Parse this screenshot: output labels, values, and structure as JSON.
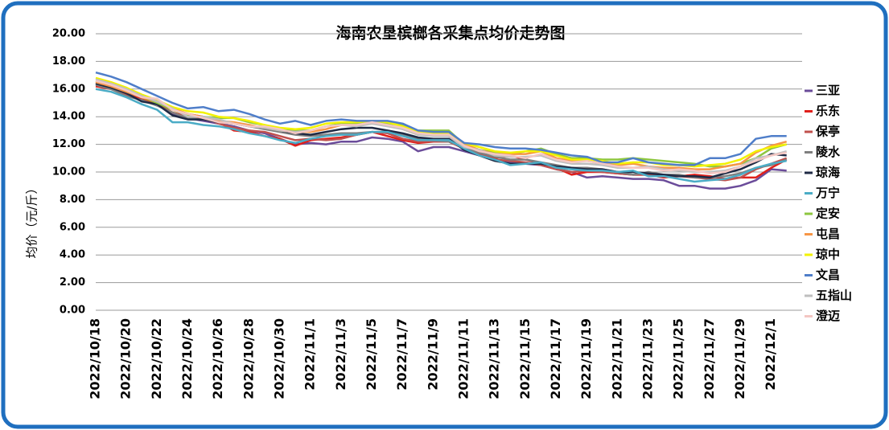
{
  "chart_data": {
    "type": "line",
    "title": "海南农垦槟榔各采集点均价走势图",
    "y_label": "均价（元/斤）",
    "categories": [
      "2022/10/18",
      null,
      "2022/10/20",
      null,
      "2022/10/22",
      null,
      "2022/10/24",
      null,
      "2022/10/26",
      null,
      "2022/10/28",
      null,
      "2022/10/30",
      null,
      "2022/11/1",
      null,
      "2022/11/3",
      null,
      "2022/11/5",
      null,
      "2022/11/7",
      null,
      "2022/11/9",
      null,
      "2022/11/11",
      null,
      "2022/11/13",
      null,
      "2022/11/15",
      null,
      "2022/11/17",
      null,
      "2022/11/19",
      null,
      "2022/11/21",
      null,
      "2022/11/23",
      null,
      "2022/11/25",
      null,
      "2022/11/27",
      null,
      "2022/11/29",
      null,
      "2022/12/1",
      null
    ],
    "ylim": [
      0,
      20
    ],
    "yticks": [
      {
        "value": 0,
        "label": "0.00"
      },
      {
        "value": 2,
        "label": "2.00"
      },
      {
        "value": 4,
        "label": "4.00"
      },
      {
        "value": 6,
        "label": "6.00"
      },
      {
        "value": 8,
        "label": "8.00"
      },
      {
        "value": 10,
        "label": "10.00"
      },
      {
        "value": 12,
        "label": "12.00"
      },
      {
        "value": 14,
        "label": "14.00"
      },
      {
        "value": 16,
        "label": "16.00"
      },
      {
        "value": 18,
        "label": "18.00"
      },
      {
        "value": 20,
        "label": "20.00"
      }
    ],
    "grid": true,
    "legend": "right",
    "series": [
      {
        "name": "三亚",
        "color": "#6b4c9a",
        "values": [
          16.4,
          16.1,
          15.7,
          15.2,
          14.9,
          14.2,
          13.9,
          13.7,
          13.5,
          13.3,
          13.0,
          12.8,
          12.4,
          12.0,
          12.1,
          12.0,
          12.2,
          12.2,
          12.5,
          12.4,
          12.2,
          11.5,
          11.8,
          11.8,
          11.5,
          11.2,
          10.9,
          10.7,
          10.6,
          10.5,
          10.2,
          10.0,
          9.6,
          9.7,
          9.6,
          9.5,
          9.5,
          9.4,
          9.0,
          9.0,
          8.8,
          8.8,
          9.0,
          9.4,
          10.2,
          10.1
        ]
      },
      {
        "name": "乐东",
        "color": "#e0201b",
        "values": [
          16.2,
          16.0,
          15.6,
          15.3,
          14.9,
          14.3,
          14.0,
          13.8,
          13.6,
          13.0,
          12.9,
          12.6,
          12.4,
          11.9,
          12.3,
          12.4,
          12.5,
          12.7,
          12.9,
          12.6,
          12.3,
          12.1,
          12.2,
          12.2,
          11.7,
          11.3,
          11.0,
          11.2,
          10.9,
          10.6,
          10.3,
          9.8,
          10.0,
          10.0,
          9.9,
          9.8,
          9.8,
          9.6,
          9.7,
          9.8,
          9.7,
          9.5,
          9.6,
          9.6,
          10.3,
          10.9
        ]
      },
      {
        "name": "保亭",
        "color": "#c0504d",
        "values": [
          16.5,
          16.2,
          15.8,
          15.4,
          15.1,
          14.6,
          14.2,
          14.0,
          13.5,
          13.2,
          13.0,
          12.9,
          12.6,
          12.3,
          12.4,
          12.3,
          12.4,
          12.7,
          12.9,
          12.8,
          12.4,
          12.2,
          12.2,
          12.2,
          11.7,
          11.3,
          10.9,
          10.8,
          10.7,
          10.5,
          10.2,
          10.0,
          10.1,
          10.0,
          9.9,
          9.8,
          9.8,
          9.7,
          9.7,
          9.6,
          9.5,
          9.4,
          9.6,
          10.2,
          10.6,
          11.0
        ]
      },
      {
        "name": "陵水",
        "color": "#7f7f7f",
        "values": [
          16.3,
          16.0,
          15.5,
          15.2,
          14.8,
          14.3,
          13.9,
          13.8,
          13.7,
          13.5,
          13.3,
          13.1,
          12.9,
          12.7,
          12.6,
          12.7,
          12.8,
          12.8,
          12.9,
          12.9,
          12.7,
          12.4,
          12.3,
          12.2,
          11.8,
          11.4,
          11.1,
          10.9,
          10.9,
          10.7,
          10.5,
          10.3,
          10.3,
          10.2,
          10.0,
          9.8,
          10.0,
          9.8,
          9.8,
          9.6,
          9.6,
          9.7,
          9.9,
          10.3,
          10.5,
          10.9
        ]
      },
      {
        "name": "琼海",
        "color": "#1f2a44",
        "values": [
          16.4,
          16.1,
          15.7,
          15.1,
          14.9,
          14.1,
          13.8,
          13.8,
          13.6,
          13.5,
          13.3,
          13.2,
          13.0,
          12.8,
          12.7,
          12.9,
          13.1,
          13.2,
          13.2,
          13.0,
          12.8,
          12.5,
          12.4,
          12.4,
          11.6,
          11.2,
          10.8,
          10.6,
          10.6,
          10.6,
          10.4,
          10.3,
          10.2,
          10.2,
          10.0,
          10.0,
          9.9,
          9.8,
          9.7,
          9.7,
          9.6,
          9.9,
          10.2,
          10.7,
          11.3,
          11.2
        ]
      },
      {
        "name": "万宁",
        "color": "#4bacc6",
        "values": [
          16.0,
          15.8,
          15.4,
          14.9,
          14.5,
          13.6,
          13.6,
          13.4,
          13.3,
          13.1,
          12.8,
          12.6,
          12.3,
          12.1,
          12.4,
          12.6,
          12.7,
          12.7,
          12.9,
          12.9,
          12.6,
          12.3,
          12.3,
          12.3,
          11.7,
          11.2,
          10.9,
          10.5,
          10.6,
          10.7,
          10.3,
          10.2,
          10.1,
          10.1,
          10.0,
          10.1,
          9.7,
          9.7,
          9.5,
          9.3,
          9.4,
          9.5,
          9.8,
          10.3,
          10.6,
          10.8
        ]
      },
      {
        "name": "定安",
        "color": "#8dc63f",
        "values": [
          16.6,
          16.3,
          15.9,
          15.4,
          15.0,
          14.5,
          14.1,
          14.0,
          13.9,
          13.9,
          13.6,
          13.4,
          13.1,
          13.0,
          13.0,
          13.3,
          13.5,
          13.5,
          13.6,
          13.5,
          13.4,
          13.0,
          13.0,
          13.0,
          12.0,
          11.6,
          11.4,
          11.3,
          11.5,
          11.7,
          11.3,
          11.0,
          11.0,
          10.9,
          10.9,
          11.0,
          10.9,
          10.8,
          10.7,
          10.6,
          10.4,
          10.4,
          10.6,
          11.0,
          11.7,
          12.0
        ]
      },
      {
        "name": "屯昌",
        "color": "#f79646",
        "values": [
          16.5,
          16.2,
          15.8,
          15.4,
          15.1,
          14.6,
          14.2,
          14.0,
          13.7,
          13.6,
          13.4,
          13.2,
          13.0,
          12.9,
          12.9,
          13.1,
          13.4,
          13.4,
          13.5,
          13.4,
          13.1,
          12.7,
          12.7,
          12.7,
          12.0,
          11.6,
          11.3,
          11.3,
          11.3,
          11.5,
          11.0,
          10.8,
          10.8,
          10.6,
          10.5,
          10.6,
          10.4,
          10.3,
          10.3,
          10.2,
          10.2,
          10.4,
          10.6,
          11.4,
          11.9,
          12.2
        ]
      },
      {
        "name": "琼中",
        "color": "#f2f200",
        "values": [
          16.8,
          16.5,
          16.1,
          15.6,
          15.2,
          14.7,
          14.4,
          14.3,
          14.0,
          13.9,
          13.7,
          13.4,
          13.2,
          13.1,
          13.2,
          13.5,
          13.6,
          13.6,
          13.7,
          13.6,
          13.3,
          12.9,
          12.8,
          12.8,
          12.1,
          11.8,
          11.5,
          11.4,
          11.5,
          11.5,
          11.2,
          10.9,
          10.9,
          10.8,
          10.6,
          10.7,
          10.7,
          10.5,
          10.5,
          10.4,
          10.5,
          10.6,
          10.9,
          11.5,
          11.8,
          12.0
        ]
      },
      {
        "name": "文昌",
        "color": "#4f7ec9",
        "values": [
          17.2,
          16.9,
          16.5,
          16.0,
          15.5,
          15.0,
          14.6,
          14.7,
          14.4,
          14.5,
          14.2,
          13.8,
          13.5,
          13.7,
          13.4,
          13.7,
          13.8,
          13.7,
          13.7,
          13.7,
          13.5,
          13.0,
          12.9,
          12.9,
          12.1,
          12.0,
          11.8,
          11.7,
          11.7,
          11.6,
          11.4,
          11.2,
          11.1,
          10.7,
          10.7,
          11.0,
          10.7,
          10.6,
          10.5,
          10.5,
          11.0,
          11.0,
          11.3,
          12.4,
          12.6,
          12.6
        ]
      },
      {
        "name": "五指山",
        "color": "#bfbfbf",
        "values": [
          16.7,
          16.4,
          16.0,
          15.5,
          15.1,
          14.6,
          14.0,
          14.0,
          13.8,
          13.5,
          13.3,
          13.2,
          13.0,
          12.9,
          13.0,
          13.3,
          13.4,
          13.3,
          13.5,
          13.3,
          13.1,
          12.7,
          12.6,
          12.6,
          11.8,
          11.6,
          11.2,
          11.1,
          11.1,
          11.2,
          10.8,
          10.6,
          10.6,
          10.5,
          10.3,
          10.3,
          10.4,
          10.2,
          10.1,
          10.0,
          10.0,
          10.1,
          10.4,
          11.0,
          11.2,
          11.5
        ]
      },
      {
        "name": "澄迈",
        "color": "#f4c7c3",
        "values": [
          16.6,
          16.3,
          15.9,
          15.4,
          15.3,
          14.5,
          14.2,
          13.9,
          13.6,
          13.5,
          13.3,
          13.3,
          13.1,
          12.8,
          13.0,
          13.3,
          13.4,
          13.4,
          13.6,
          13.4,
          13.2,
          12.8,
          12.7,
          12.7,
          11.9,
          11.5,
          11.3,
          11.2,
          11.0,
          11.3,
          10.9,
          10.7,
          10.8,
          10.6,
          10.4,
          10.3,
          10.3,
          10.1,
          10.2,
          10.1,
          9.9,
          10.0,
          10.4,
          10.8,
          11.2,
          11.4
        ]
      }
    ]
  }
}
